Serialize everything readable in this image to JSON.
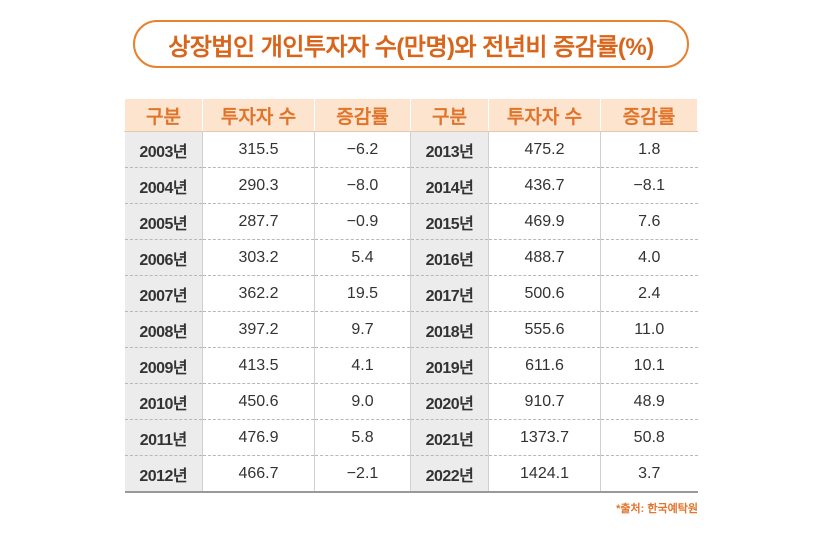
{
  "title": "상장법인 개인투자자 수(만명)와 전년비 증감률(%)",
  "chart_data": {
    "type": "table",
    "title": "상장법인 개인투자자 수(만명)와 전년비 증감률(%)",
    "headers": [
      "구분",
      "투자자 수",
      "증감률",
      "구분",
      "투자자 수",
      "증감률"
    ],
    "rows": [
      {
        "y1": "2003년",
        "i1": "315.5",
        "c1": "−6.2",
        "y2": "2013년",
        "i2": "475.2",
        "c2": "1.8"
      },
      {
        "y1": "2004년",
        "i1": "290.3",
        "c1": "−8.0",
        "y2": "2014년",
        "i2": "436.7",
        "c2": "−8.1"
      },
      {
        "y1": "2005년",
        "i1": "287.7",
        "c1": "−0.9",
        "y2": "2015년",
        "i2": "469.9",
        "c2": "7.6"
      },
      {
        "y1": "2006년",
        "i1": "303.2",
        "c1": "5.4",
        "y2": "2016년",
        "i2": "488.7",
        "c2": "4.0"
      },
      {
        "y1": "2007년",
        "i1": "362.2",
        "c1": "19.5",
        "y2": "2017년",
        "i2": "500.6",
        "c2": "2.4"
      },
      {
        "y1": "2008년",
        "i1": "397.2",
        "c1": "9.7",
        "y2": "2018년",
        "i2": "555.6",
        "c2": "11.0"
      },
      {
        "y1": "2009년",
        "i1": "413.5",
        "c1": "4.1",
        "y2": "2019년",
        "i2": "611.6",
        "c2": "10.1"
      },
      {
        "y1": "2010년",
        "i1": "450.6",
        "c1": "9.0",
        "y2": "2020년",
        "i2": "910.7",
        "c2": "48.9"
      },
      {
        "y1": "2011년",
        "i1": "476.9",
        "c1": "5.8",
        "y2": "2021년",
        "i2": "1373.7",
        "c2": "50.8"
      },
      {
        "y1": "2012년",
        "i1": "466.7",
        "c1": "−2.1",
        "y2": "2022년",
        "i2": "1424.1",
        "c2": "3.7"
      }
    ]
  },
  "source": "*출처: 한국예탁원",
  "colors": {
    "accent": "#e7822f",
    "header_bg": "#fce4cf",
    "year_bg": "#ececec"
  }
}
